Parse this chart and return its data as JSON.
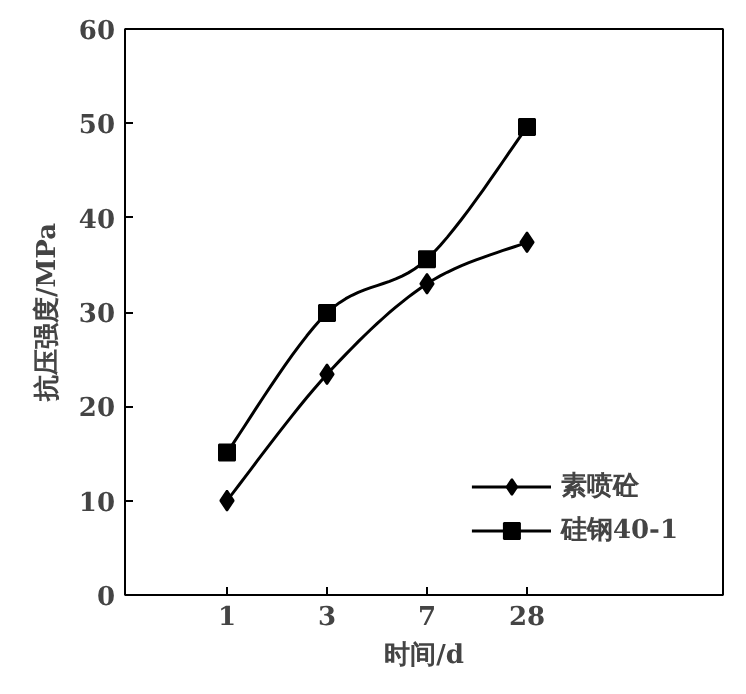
{
  "chart_data": {
    "type": "line",
    "xlabel": "时间/d",
    "ylabel": "抗压强度/MPa",
    "categories": [
      "1",
      "3",
      "7",
      "28"
    ],
    "ylim": [
      0,
      60
    ],
    "yticks": [
      0,
      10,
      20,
      30,
      40,
      50,
      60
    ],
    "grid": false,
    "legend": "bottom right",
    "series": [
      {
        "name": "素喷砼",
        "color": "#000000",
        "marker": "diamond",
        "values": [
          10.0,
          23.4,
          33.0,
          37.4
        ]
      },
      {
        "name": "硅钢40-1",
        "color": "#000000",
        "marker": "square",
        "values": [
          15.1,
          29.9,
          35.6,
          49.6
        ]
      }
    ]
  }
}
